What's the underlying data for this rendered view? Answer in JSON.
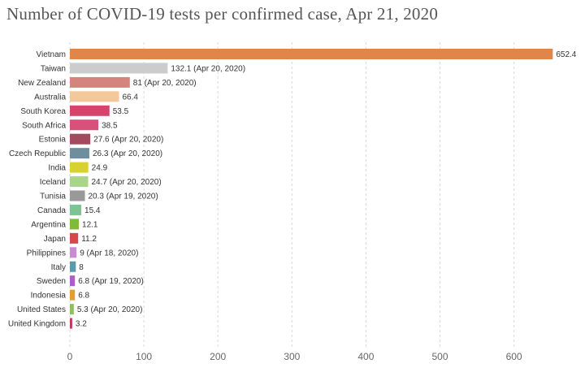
{
  "chart_data": {
    "type": "bar",
    "orientation": "horizontal",
    "title": "Number of COVID-19 tests per confirmed case, Apr 21, 2020",
    "xlim": [
      0,
      660
    ],
    "x_ticks": [
      0,
      100,
      200,
      300,
      400,
      500,
      600
    ],
    "x_tick_labels": [
      "0",
      "100",
      "200",
      "300",
      "400",
      "500",
      "600"
    ],
    "grid": "vertical dashed",
    "bars": [
      {
        "category": "Vietnam",
        "value": 652.4,
        "label": "652.4",
        "color": "#e0864a"
      },
      {
        "category": "Taiwan",
        "value": 132.1,
        "label": "132.1 (Apr 20, 2020)",
        "color": "#cccccc"
      },
      {
        "category": "New Zealand",
        "value": 81,
        "label": "81 (Apr 20, 2020)",
        "color": "#d4847c"
      },
      {
        "category": "Australia",
        "value": 66.4,
        "label": "66.4",
        "color": "#f3c89a"
      },
      {
        "category": "South Korea",
        "value": 53.5,
        "label": "53.5",
        "color": "#d5446a"
      },
      {
        "category": "South Africa",
        "value": 38.5,
        "label": "38.5",
        "color": "#d6527a"
      },
      {
        "category": "Estonia",
        "value": 27.6,
        "label": "27.6 (Apr 20, 2020)",
        "color": "#a34a5e"
      },
      {
        "category": "Czech Republic",
        "value": 26.3,
        "label": "26.3 (Apr 20, 2020)",
        "color": "#6d8e9c"
      },
      {
        "category": "India",
        "value": 24.9,
        "label": "24.9",
        "color": "#d8d22e"
      },
      {
        "category": "Iceland",
        "value": 24.7,
        "label": "24.7 (Apr 20, 2020)",
        "color": "#a9d58a"
      },
      {
        "category": "Tunisia",
        "value": 20.3,
        "label": "20.3 (Apr 19, 2020)",
        "color": "#999999"
      },
      {
        "category": "Canada",
        "value": 15.4,
        "label": "15.4",
        "color": "#7cc494"
      },
      {
        "category": "Argentina",
        "value": 12.1,
        "label": "12.1",
        "color": "#7fba3a"
      },
      {
        "category": "Japan",
        "value": 11.2,
        "label": "11.2",
        "color": "#d84848"
      },
      {
        "category": "Philippines",
        "value": 9,
        "label": "9 (Apr 18, 2020)",
        "color": "#c88ad0"
      },
      {
        "category": "Italy",
        "value": 8,
        "label": "8",
        "color": "#5a9aaa"
      },
      {
        "category": "Sweden",
        "value": 6.8,
        "label": "6.8 (Apr 19, 2020)",
        "color": "#b05cc8"
      },
      {
        "category": "Indonesia",
        "value": 6.8,
        "label": "6.8",
        "color": "#e0a030"
      },
      {
        "category": "United States",
        "value": 5.3,
        "label": "5.3 (Apr 20, 2020)",
        "color": "#8cc060"
      },
      {
        "category": "United Kingdom",
        "value": 3.2,
        "label": "3.2",
        "color": "#c03a5a"
      }
    ]
  }
}
